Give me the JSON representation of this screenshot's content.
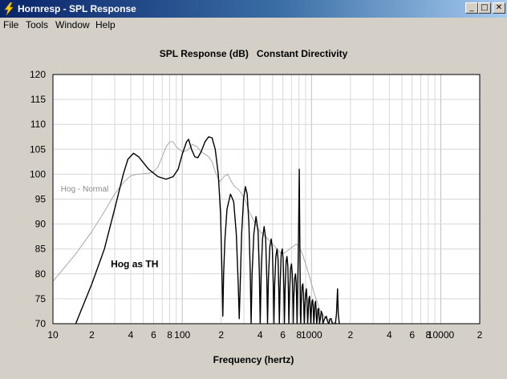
{
  "window": {
    "title": "Hornresp - SPL Response",
    "icon": "lightning-bolt-icon",
    "controls": {
      "minimize": "_",
      "maximize": "□",
      "close": "✕"
    }
  },
  "menu": {
    "items": [
      {
        "label": "File"
      },
      {
        "label": "Tools"
      },
      {
        "label": "Window"
      },
      {
        "label": "Help"
      }
    ]
  },
  "colors": {
    "plot_background": "#ffffff",
    "grid": "#d8d8d8",
    "main_series": "#000000",
    "reference_series": "#a0a0a0"
  },
  "chart_data": {
    "type": "line",
    "title": "SPL Response (dB)   Constant Directivity",
    "xlabel": "Frequency (hertz)",
    "ylabel": "",
    "x_scale": "log",
    "xlim": [
      10,
      20000
    ],
    "ylim": [
      70,
      120
    ],
    "grid": true,
    "y_ticks": [
      "120",
      "115",
      "110",
      "105",
      "100",
      "95",
      "90",
      "85",
      "80",
      "75",
      "70"
    ],
    "x_ticks": [
      {
        "value": 10,
        "label": "10"
      },
      {
        "value": 20,
        "label": "2"
      },
      {
        "value": 40,
        "label": "4"
      },
      {
        "value": 60,
        "label": "6"
      },
      {
        "value": 80,
        "label": "8"
      },
      {
        "value": 100,
        "label": "100"
      },
      {
        "value": 200,
        "label": "2"
      },
      {
        "value": 400,
        "label": "4"
      },
      {
        "value": 600,
        "label": "6"
      },
      {
        "value": 800,
        "label": "8"
      },
      {
        "value": 1000,
        "label": "1000"
      },
      {
        "value": 2000,
        "label": "2"
      },
      {
        "value": 4000,
        "label": "4"
      },
      {
        "value": 6000,
        "label": "6"
      },
      {
        "value": 8000,
        "label": "8"
      },
      {
        "value": 10000,
        "label": "10000"
      },
      {
        "value": 20000,
        "label": "2"
      }
    ],
    "annotations": [
      {
        "text": "Hog - Normal",
        "series": "reference",
        "x": 11.5,
        "y": 96.5
      },
      {
        "text": "Hog as TH",
        "series": "main",
        "x": 28,
        "y": 81.3
      }
    ],
    "series": [
      {
        "name": "Hog as TH",
        "style": "main",
        "points": [
          [
            10,
            60
          ],
          [
            15,
            70
          ],
          [
            20,
            78
          ],
          [
            25,
            85
          ],
          [
            30,
            93
          ],
          [
            35,
            100
          ],
          [
            38,
            103
          ],
          [
            42,
            104.2
          ],
          [
            46,
            103.5
          ],
          [
            55,
            101
          ],
          [
            65,
            99.5
          ],
          [
            75,
            99
          ],
          [
            85,
            99.5
          ],
          [
            93,
            101
          ],
          [
            100,
            104
          ],
          [
            108,
            106.5
          ],
          [
            112,
            107
          ],
          [
            118,
            105
          ],
          [
            125,
            103.5
          ],
          [
            132,
            103.3
          ],
          [
            140,
            104.5
          ],
          [
            150,
            106.5
          ],
          [
            160,
            107.5
          ],
          [
            170,
            107.3
          ],
          [
            180,
            105
          ],
          [
            190,
            100
          ],
          [
            198,
            92
          ],
          [
            203,
            80
          ],
          [
            206,
            71.5
          ],
          [
            209,
            80
          ],
          [
            214,
            87
          ],
          [
            222,
            93
          ],
          [
            236,
            96
          ],
          [
            250,
            94.5
          ],
          [
            262,
            88
          ],
          [
            271,
            78
          ],
          [
            276,
            71
          ],
          [
            281,
            78
          ],
          [
            288,
            88
          ],
          [
            298,
            95
          ],
          [
            308,
            97.5
          ],
          [
            318,
            96
          ],
          [
            328,
            90
          ],
          [
            336,
            80
          ],
          [
            341,
            70
          ],
          [
            347,
            80
          ],
          [
            358,
            88
          ],
          [
            372,
            91.5
          ],
          [
            386,
            88.5
          ],
          [
            395,
            80
          ],
          [
            401,
            70
          ],
          [
            408,
            80
          ],
          [
            418,
            87
          ],
          [
            430,
            89.5
          ],
          [
            442,
            87
          ],
          [
            451,
            79
          ],
          [
            457,
            70
          ],
          [
            464,
            79
          ],
          [
            476,
            85.5
          ],
          [
            488,
            87
          ],
          [
            498,
            85
          ],
          [
            506,
            78
          ],
          [
            512,
            70
          ],
          [
            519,
            78
          ],
          [
            530,
            83.5
          ],
          [
            541,
            85
          ],
          [
            551,
            83
          ],
          [
            558,
            77
          ],
          [
            564,
            70
          ],
          [
            572,
            78
          ],
          [
            583,
            84
          ],
          [
            594,
            85
          ],
          [
            603,
            83
          ],
          [
            611,
            77
          ],
          [
            617,
            70
          ],
          [
            625,
            77
          ],
          [
            636,
            82.5
          ],
          [
            646,
            83.5
          ],
          [
            656,
            81.5
          ],
          [
            663,
            76
          ],
          [
            668,
            70
          ],
          [
            676,
            76
          ],
          [
            688,
            81
          ],
          [
            700,
            82
          ],
          [
            710,
            80
          ],
          [
            717,
            75
          ],
          [
            722,
            70
          ],
          [
            729,
            75
          ],
          [
            740,
            79
          ],
          [
            752,
            80
          ],
          [
            762,
            78
          ],
          [
            768,
            74
          ],
          [
            773,
            70
          ],
          [
            780,
            76
          ],
          [
            790,
            84
          ],
          [
            797,
            92
          ],
          [
            804,
            101
          ],
          [
            809,
            92
          ],
          [
            815,
            82
          ],
          [
            821,
            72
          ],
          [
            826,
            70
          ],
          [
            833,
            74
          ],
          [
            845,
            77.5
          ],
          [
            857,
            78
          ],
          [
            867,
            76
          ],
          [
            874,
            72
          ],
          [
            879,
            70
          ],
          [
            887,
            73
          ],
          [
            900,
            76
          ],
          [
            912,
            77
          ],
          [
            922,
            75
          ],
          [
            929,
            72
          ],
          [
            934,
            70
          ],
          [
            942,
            72
          ],
          [
            955,
            75
          ],
          [
            966,
            75.5
          ],
          [
            975,
            74
          ],
          [
            982,
            71.5
          ],
          [
            987,
            70
          ],
          [
            995,
            72
          ],
          [
            1008,
            74.5
          ],
          [
            1020,
            74.8
          ],
          [
            1030,
            73.5
          ],
          [
            1037,
            71.5
          ],
          [
            1042,
            70
          ],
          [
            1050,
            71.5
          ],
          [
            1063,
            74
          ],
          [
            1075,
            74.5
          ],
          [
            1085,
            73
          ],
          [
            1092,
            71
          ],
          [
            1097,
            70
          ],
          [
            1108,
            71
          ],
          [
            1122,
            73
          ],
          [
            1135,
            73
          ],
          [
            1146,
            71.5
          ],
          [
            1153,
            70
          ],
          [
            1170,
            71
          ],
          [
            1190,
            72.5
          ],
          [
            1210,
            72
          ],
          [
            1225,
            70
          ],
          [
            1260,
            71
          ],
          [
            1300,
            71.5
          ],
          [
            1330,
            70.5
          ],
          [
            1360,
            70
          ],
          [
            1390,
            71
          ],
          [
            1420,
            71
          ],
          [
            1450,
            70
          ],
          [
            1530,
            70
          ],
          [
            1560,
            72
          ],
          [
            1590,
            77
          ],
          [
            1610,
            72
          ],
          [
            1640,
            70
          ]
        ]
      },
      {
        "name": "Hog - Normal",
        "style": "reference",
        "points": [
          [
            10,
            78.5
          ],
          [
            15,
            84
          ],
          [
            20,
            88.5
          ],
          [
            25,
            92.5
          ],
          [
            30,
            96
          ],
          [
            35,
            98.3
          ],
          [
            40,
            99.7
          ],
          [
            45,
            100
          ],
          [
            55,
            100.2
          ],
          [
            60,
            100.5
          ],
          [
            65,
            101.5
          ],
          [
            70,
            103.5
          ],
          [
            75,
            105.5
          ],
          [
            80,
            106.5
          ],
          [
            85,
            106.5
          ],
          [
            90,
            105.5
          ],
          [
            100,
            104.5
          ],
          [
            110,
            104.8
          ],
          [
            120,
            106
          ],
          [
            130,
            105.5
          ],
          [
            140,
            104.5
          ],
          [
            150,
            104
          ],
          [
            160,
            103.5
          ],
          [
            170,
            102.5
          ],
          [
            180,
            100.5
          ],
          [
            195,
            98.5
          ],
          [
            210,
            99.5
          ],
          [
            225,
            100
          ],
          [
            240,
            98.5
          ],
          [
            255,
            97.5
          ],
          [
            270,
            97
          ],
          [
            290,
            96
          ],
          [
            310,
            94.5
          ],
          [
            330,
            92.5
          ],
          [
            360,
            90.5
          ],
          [
            400,
            88.5
          ],
          [
            440,
            87.5
          ],
          [
            480,
            86.5
          ],
          [
            520,
            85.5
          ],
          [
            560,
            84.5
          ],
          [
            600,
            84
          ],
          [
            640,
            84.5
          ],
          [
            680,
            85
          ],
          [
            720,
            85.5
          ],
          [
            760,
            86
          ],
          [
            800,
            85.5
          ],
          [
            850,
            84
          ],
          [
            900,
            82
          ],
          [
            950,
            80
          ],
          [
            1000,
            78
          ],
          [
            1050,
            76
          ],
          [
            1100,
            74.5
          ],
          [
            1150,
            73
          ],
          [
            1200,
            72
          ],
          [
            1300,
            71
          ],
          [
            1400,
            70.5
          ],
          [
            1500,
            70.2
          ],
          [
            1600,
            70
          ]
        ]
      }
    ]
  }
}
